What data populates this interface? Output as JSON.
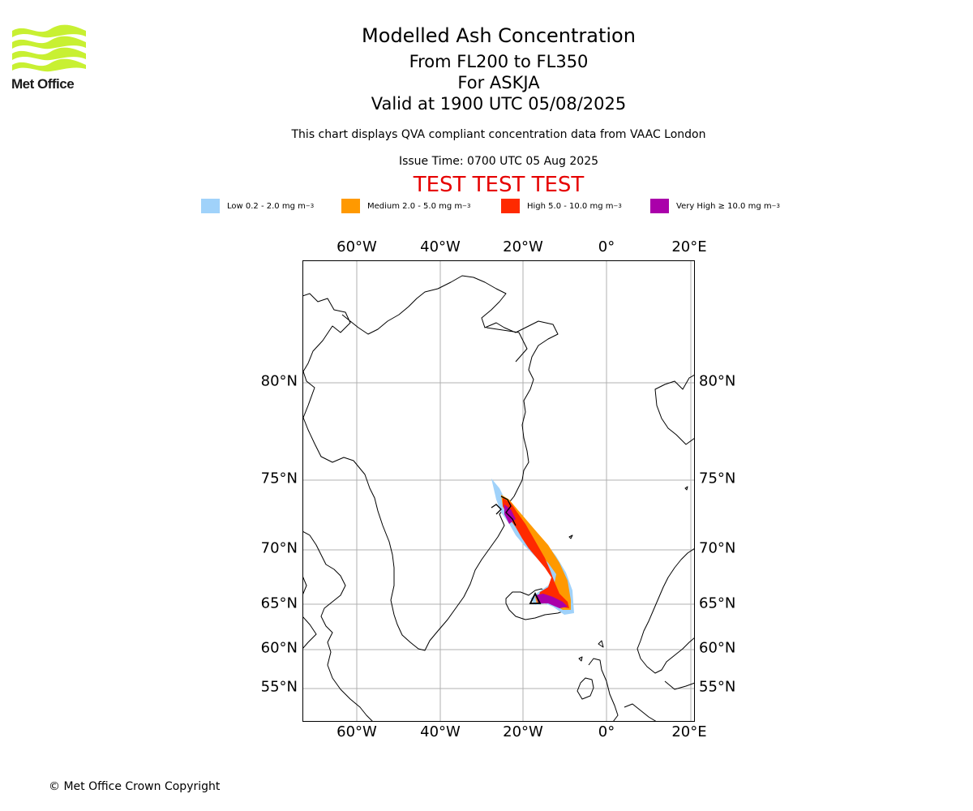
{
  "header": {
    "logo_text": "Met Office",
    "title_line1": "Modelled Ash Concentration",
    "title_line2": "From FL200 to FL350",
    "title_line3": "For ASKJA",
    "title_line4": "Valid at 1900 UTC 05/08/2025",
    "subtitle": "This chart displays QVA compliant concentration data from VAAC London",
    "issue_time": "Issue Time: 0700 UTC 05 Aug 2025",
    "test_banner": "TEST TEST TEST"
  },
  "legend": [
    {
      "label": "Low 0.2 - 2.0 mg m",
      "exp": "−3",
      "color": "#a0d2fa"
    },
    {
      "label": "Medium 2.0 - 5.0 mg m",
      "exp": "−3",
      "color": "#ff9900"
    },
    {
      "label": "High 5.0 - 10.0 mg m",
      "exp": "−3",
      "color": "#ff2a00"
    },
    {
      "label": "Very High  ≥  10.0 mg m",
      "exp": "−3",
      "color": "#aa00aa"
    }
  ],
  "map": {
    "lon_ticks": [
      "60°W",
      "40°W",
      "20°W",
      "0°",
      "20°E"
    ],
    "lat_ticks": [
      "80°N",
      "75°N",
      "70°N",
      "65°N",
      "60°N",
      "55°N"
    ],
    "volcano": "ASKJA",
    "grid": true,
    "land_color": "#ffffff",
    "coast_color": "#000000"
  },
  "footer": {
    "copyright": "© Met Office Crown Copyright"
  }
}
